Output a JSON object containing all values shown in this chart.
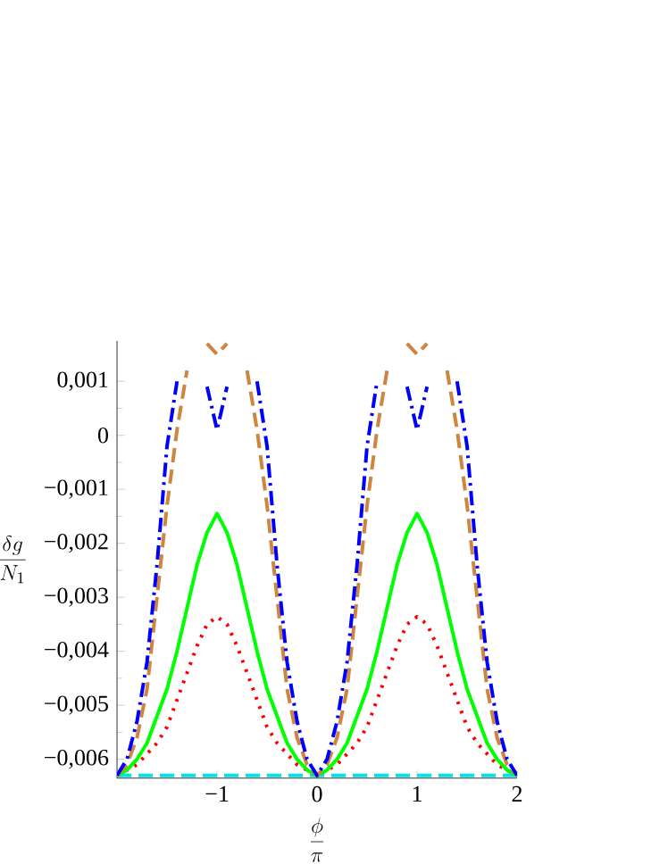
{
  "chart_data": {
    "type": "line",
    "xlabel": "\\frac{\\phi}{\\pi}",
    "ylabel": "\\frac{\\delta g}{N_{1}}",
    "x": [
      -2,
      -1.9,
      -1.8,
      -1.7,
      -1.6,
      -1.5,
      -1.4,
      -1.3,
      -1.2,
      -1.1,
      -1,
      -0.9,
      -0.8,
      -0.7,
      -0.6,
      -0.5,
      -0.4,
      -0.3,
      -0.2,
      -0.1,
      0,
      0.1,
      0.2,
      0.3,
      0.4,
      0.5,
      0.6,
      0.7,
      0.8,
      0.9,
      1,
      1.1,
      1.2,
      1.3,
      1.4,
      1.5,
      1.6,
      1.7,
      1.8,
      1.9,
      2
    ],
    "xlim": [
      -2,
      2
    ],
    "ylim": [
      -0.00635,
      0.00175
    ],
    "xticks": [
      {
        "value": -1,
        "label": "−1"
      },
      0,
      1,
      2
    ],
    "yticks": [
      {
        "value": 0.001,
        "label": "0,001"
      },
      {
        "value": 0,
        "label": "0"
      },
      {
        "value": -0.001,
        "label": "−0,001"
      },
      {
        "value": -0.002,
        "label": "−0,002"
      },
      {
        "value": -0.003,
        "label": "−0,003"
      },
      {
        "value": -0.004,
        "label": "−0,004"
      },
      {
        "value": -0.005,
        "label": "−0,005"
      },
      {
        "value": -0.006,
        "label": "−0,006"
      }
    ],
    "series": [
      {
        "color": "#00e5e5",
        "line_style": "dashed",
        "x": [
          -2,
          2
        ],
        "values": [
          -0.0063,
          -0.0063
        ]
      },
      {
        "color": "#ff0000",
        "line_style": "dotted",
        "values": [
          -0.0063,
          -0.0062,
          -0.0061,
          -0.0059,
          -0.0057,
          -0.0054,
          -0.0049,
          -0.0044,
          -0.0039,
          -0.0035,
          -0.00336,
          -0.0035,
          -0.0039,
          -0.0044,
          -0.0049,
          -0.0054,
          -0.0057,
          -0.0059,
          -0.0061,
          -0.0062,
          -0.0063,
          -0.0062,
          -0.0061,
          -0.0059,
          -0.0057,
          -0.0054,
          -0.0049,
          -0.0044,
          -0.0039,
          -0.0035,
          -0.00336,
          -0.0035,
          -0.0039,
          -0.0044,
          -0.0049,
          -0.0054,
          -0.0057,
          -0.0059,
          -0.0061,
          -0.0062,
          -0.0063
        ]
      },
      {
        "color": "#00ff00",
        "line_style": "solid",
        "values": [
          -0.0063,
          -0.0062,
          -0.006,
          -0.0057,
          -0.0052,
          -0.0047,
          -0.004,
          -0.0032,
          -0.0024,
          -0.0018,
          -0.00145,
          -0.0018,
          -0.0024,
          -0.0032,
          -0.004,
          -0.0047,
          -0.0052,
          -0.0057,
          -0.006,
          -0.0062,
          -0.0063,
          -0.0062,
          -0.006,
          -0.0057,
          -0.0052,
          -0.0047,
          -0.004,
          -0.0032,
          -0.0024,
          -0.0018,
          -0.00145,
          -0.0018,
          -0.0024,
          -0.0032,
          -0.004,
          -0.0047,
          -0.0052,
          -0.0057,
          -0.006,
          -0.0062,
          -0.0063
        ]
      },
      {
        "color": "#cd853f",
        "line_style": "dashed",
        "values": [
          -0.0063,
          -0.0061,
          -0.0056,
          -0.0047,
          -0.003,
          -0.0013,
          0.0001,
          0.0012,
          null,
          0.0017,
          0.0015,
          0.0017,
          null,
          0.0012,
          0.0001,
          -0.0013,
          -0.003,
          -0.0047,
          -0.0056,
          -0.0061,
          -0.0063,
          -0.0061,
          -0.0056,
          -0.0047,
          -0.003,
          -0.0013,
          0.0001,
          0.0012,
          null,
          0.0017,
          0.0015,
          0.0017,
          null,
          0.0012,
          0.0001,
          -0.0013,
          -0.003,
          -0.0047,
          -0.0056,
          -0.0061,
          -0.0063
        ]
      },
      {
        "color": "#0000ff",
        "line_style": "dashdot",
        "values": [
          -0.0063,
          -0.006,
          -0.0053,
          -0.0042,
          -0.0024,
          -0.0002,
          0.001,
          null,
          null,
          0.0009,
          0.0001,
          0.0009,
          null,
          null,
          0.001,
          -0.0002,
          -0.0024,
          -0.0042,
          -0.0053,
          -0.006,
          -0.0063,
          -0.006,
          -0.0053,
          -0.0042,
          -0.0024,
          -0.0002,
          0.001,
          null,
          null,
          0.0009,
          0.0001,
          0.0009,
          null,
          null,
          0.001,
          -0.0002,
          -0.0024,
          -0.0042,
          -0.0053,
          -0.006,
          -0.0063
        ]
      }
    ]
  }
}
